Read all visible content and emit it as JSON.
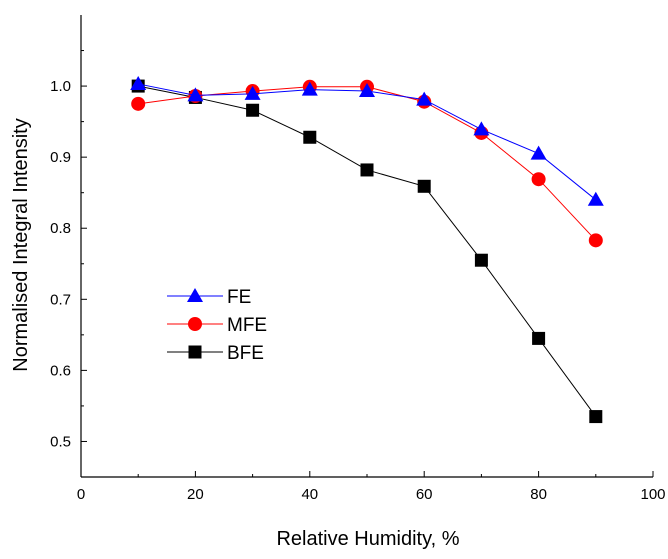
{
  "chart_data": {
    "type": "line",
    "xlabel": "Relative Humidity, %",
    "ylabel": "Normalised Integral Intensity",
    "xlim": [
      0,
      100
    ],
    "ylim": [
      0.45,
      1.1
    ],
    "x_ticks": [
      0,
      20,
      40,
      60,
      80,
      100
    ],
    "y_ticks": [
      0.5,
      0.6,
      0.7,
      0.8,
      0.9,
      1.0
    ],
    "x_tick_labels": [
      "0",
      "20",
      "40",
      "60",
      "80",
      "100"
    ],
    "y_tick_labels": [
      "0.5",
      "0.6",
      "0.7",
      "0.8",
      "0.9",
      "1.0"
    ],
    "grid": false,
    "legend_position": "center-left",
    "x": [
      10,
      20,
      30,
      40,
      50,
      60,
      70,
      80,
      90
    ],
    "series": [
      {
        "name": "FE",
        "marker": "triangle",
        "color": "#0000ff",
        "values": [
          1.003,
          0.987,
          0.989,
          0.995,
          0.993,
          0.981,
          0.939,
          0.905,
          0.84
        ]
      },
      {
        "name": "MFE",
        "marker": "circle",
        "color": "#ff0000",
        "values": [
          0.975,
          0.986,
          0.993,
          0.999,
          0.999,
          0.978,
          0.934,
          0.869,
          0.783
        ]
      },
      {
        "name": "BFE",
        "marker": "square",
        "color": "#000000",
        "values": [
          1.0,
          0.984,
          0.966,
          0.928,
          0.882,
          0.859,
          0.755,
          0.645,
          0.535
        ]
      }
    ]
  }
}
